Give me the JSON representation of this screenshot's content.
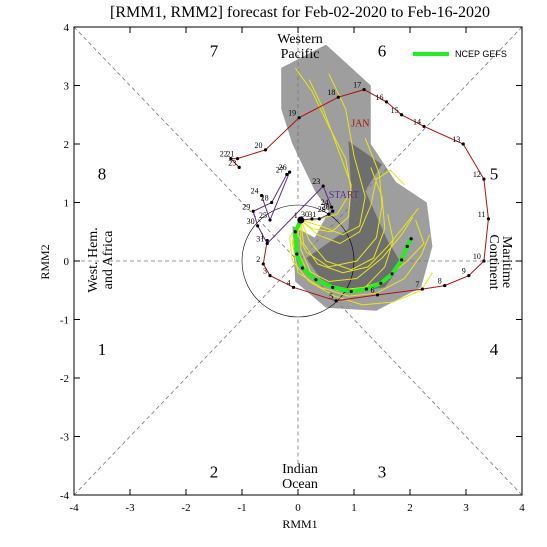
{
  "title": "[RMM1, RMM2] forecast for Feb-02-2020 to Feb-16-2020",
  "colors": {
    "observed_recent": "#5b2d8e",
    "observed_january": "#b01010",
    "ensemble_members": "#e6e61a",
    "ensemble_mean": "#22ee22",
    "spread_light": "#9e9e9e",
    "spread_dark": "#6e6e6e",
    "grid": "#777777"
  },
  "regions": {
    "western_pacific": [
      "Western",
      "Pacific"
    ],
    "indian_ocean": [
      "Indian",
      "Ocean"
    ],
    "maritime_continent": [
      "Maritime",
      "Continent"
    ],
    "west_hem_africa": [
      "West. Hem.",
      "and Africa"
    ]
  },
  "phases": [
    {
      "label": "1",
      "x": -3.5,
      "y": -1.5
    },
    {
      "label": "2",
      "x": -1.5,
      "y": -3.6
    },
    {
      "label": "3",
      "x": 1.5,
      "y": -3.6
    },
    {
      "label": "4",
      "x": 3.5,
      "y": -1.5
    },
    {
      "label": "5",
      "x": 3.5,
      "y": 1.5
    },
    {
      "label": "6",
      "x": 1.5,
      "y": 3.6
    },
    {
      "label": "7",
      "x": -1.5,
      "y": 3.6
    },
    {
      "label": "8",
      "x": -3.5,
      "y": 1.5
    }
  ],
  "legend": {
    "label": "NCEP GEFS"
  },
  "chart_data": {
    "type": "scatter",
    "xlabel": "RMM1",
    "ylabel": "RMM2",
    "xlim": [
      -4,
      4
    ],
    "ylim": [
      -4,
      4
    ],
    "xticks": [
      "-4",
      "-3",
      "-2",
      "-1",
      "0",
      "1",
      "2",
      "3",
      "4"
    ],
    "yticks": [
      "-4",
      "-3",
      "-2",
      "-1",
      "0",
      "1",
      "2",
      "3",
      "4"
    ],
    "month_label": {
      "text": "JAN",
      "x": 0.95,
      "y": 2.3
    },
    "start_label": {
      "text": "START",
      "x": 0.55,
      "y": 1.08
    },
    "observed_january": [
      {
        "day": "1",
        "x": -0.55,
        "y": 0.35
      },
      {
        "day": "2",
        "x": -0.62,
        "y": -0.05
      },
      {
        "day": "3",
        "x": -0.5,
        "y": -0.25
      },
      {
        "day": "4",
        "x": -0.08,
        "y": -0.45
      },
      {
        "day": "5",
        "x": 0.68,
        "y": -0.68
      },
      {
        "day": "6",
        "x": 1.42,
        "y": -0.58
      },
      {
        "day": "7",
        "x": 2.22,
        "y": -0.48
      },
      {
        "day": "8",
        "x": 2.62,
        "y": -0.42
      },
      {
        "day": "9",
        "x": 3.05,
        "y": -0.25
      },
      {
        "day": "10",
        "x": 3.32,
        "y": 0.0
      },
      {
        "day": "11",
        "x": 3.4,
        "y": 0.72
      },
      {
        "day": "12",
        "x": 3.32,
        "y": 1.4
      },
      {
        "day": "13",
        "x": 2.95,
        "y": 2.0
      },
      {
        "day": "14",
        "x": 2.25,
        "y": 2.3
      },
      {
        "day": "15",
        "x": 1.85,
        "y": 2.5
      },
      {
        "day": "16",
        "x": 1.58,
        "y": 2.72
      },
      {
        "day": "17",
        "x": 1.18,
        "y": 2.93
      },
      {
        "day": "18",
        "x": 0.72,
        "y": 2.8
      },
      {
        "day": "19",
        "x": 0.02,
        "y": 2.45
      },
      {
        "day": "20",
        "x": -0.58,
        "y": 1.9
      },
      {
        "day": "21",
        "x": -1.08,
        "y": 1.75
      },
      {
        "day": "22",
        "x": -1.2,
        "y": 1.75
      },
      {
        "day": "23",
        "x": -1.05,
        "y": 1.6
      }
    ],
    "observed_recent": [
      {
        "day": "24",
        "x": -0.65,
        "y": 1.12
      },
      {
        "day": "25",
        "x": -0.5,
        "y": 0.7
      },
      {
        "day": "26",
        "x": -0.15,
        "y": 1.52
      },
      {
        "day": "27",
        "x": -0.2,
        "y": 1.48
      },
      {
        "day": "28",
        "x": -0.47,
        "y": 1.0
      },
      {
        "day": "29",
        "x": -0.8,
        "y": 0.85
      },
      {
        "day": "30",
        "x": -0.72,
        "y": 0.6
      },
      {
        "day": "31",
        "x": -0.55,
        "y": 0.3
      },
      {
        "day": "23",
        "x": 0.45,
        "y": 1.28
      },
      {
        "day": "24",
        "x": 0.6,
        "y": 0.92
      },
      {
        "day": "28",
        "x": 0.62,
        "y": 0.85
      },
      {
        "day": "29",
        "x": 0.55,
        "y": 0.8
      },
      {
        "day": "31",
        "x": 0.38,
        "y": 0.72
      },
      {
        "day": "30",
        "x": 0.25,
        "y": 0.72
      },
      {
        "day": "1",
        "x": 0.05,
        "y": 0.7
      }
    ],
    "ensemble_mean": [
      {
        "x": 0.05,
        "y": 0.7
      },
      {
        "x": -0.05,
        "y": 0.5
      },
      {
        "x": -0.02,
        "y": 0.12
      },
      {
        "x": 0.08,
        "y": -0.12
      },
      {
        "x": 0.32,
        "y": -0.32
      },
      {
        "x": 0.62,
        "y": -0.45
      },
      {
        "x": 0.95,
        "y": -0.52
      },
      {
        "x": 1.22,
        "y": -0.48
      },
      {
        "x": 1.48,
        "y": -0.38
      },
      {
        "x": 1.68,
        "y": -0.22
      },
      {
        "x": 1.85,
        "y": 0.02
      },
      {
        "x": 1.95,
        "y": 0.25
      },
      {
        "x": 2.02,
        "y": 0.38
      }
    ],
    "ensemble_members": [
      [
        {
          "x": 0.05,
          "y": 0.7
        },
        {
          "x": -0.1,
          "y": 0.3
        },
        {
          "x": 0.0,
          "y": -0.2
        },
        {
          "x": 0.4,
          "y": -0.45
        },
        {
          "x": 0.9,
          "y": -0.6
        },
        {
          "x": 1.4,
          "y": -0.55
        },
        {
          "x": 1.9,
          "y": -0.3
        },
        {
          "x": 2.2,
          "y": 0.1
        },
        {
          "x": 2.35,
          "y": 0.45
        }
      ],
      [
        {
          "x": 0.05,
          "y": 0.7
        },
        {
          "x": 0.05,
          "y": 0.2
        },
        {
          "x": 0.25,
          "y": -0.25
        },
        {
          "x": 0.7,
          "y": -0.5
        },
        {
          "x": 1.2,
          "y": -0.45
        },
        {
          "x": 1.55,
          "y": -0.1
        },
        {
          "x": 1.7,
          "y": 0.35
        },
        {
          "x": 1.6,
          "y": 0.8
        }
      ],
      [
        {
          "x": 0.05,
          "y": 0.7
        },
        {
          "x": 0.2,
          "y": 0.35
        },
        {
          "x": 0.5,
          "y": 0.0
        },
        {
          "x": 0.95,
          "y": -0.15
        },
        {
          "x": 1.35,
          "y": 0.05
        },
        {
          "x": 1.55,
          "y": 0.55
        },
        {
          "x": 1.5,
          "y": 1.1
        },
        {
          "x": 1.3,
          "y": 1.6
        }
      ],
      [
        {
          "x": 0.05,
          "y": 0.7
        },
        {
          "x": -0.15,
          "y": 0.4
        },
        {
          "x": -0.1,
          "y": 0.0
        },
        {
          "x": 0.2,
          "y": -0.35
        },
        {
          "x": 0.65,
          "y": -0.6
        },
        {
          "x": 1.15,
          "y": -0.75
        },
        {
          "x": 1.7,
          "y": -0.7
        },
        {
          "x": 2.2,
          "y": -0.5
        },
        {
          "x": 2.4,
          "y": -0.2
        }
      ],
      [
        {
          "x": 0.05,
          "y": 0.7
        },
        {
          "x": 0.4,
          "y": 0.6
        },
        {
          "x": 0.8,
          "y": 0.45
        },
        {
          "x": 1.1,
          "y": 0.6
        },
        {
          "x": 1.2,
          "y": 1.1
        },
        {
          "x": 1.0,
          "y": 1.8
        },
        {
          "x": 0.85,
          "y": 2.6
        },
        {
          "x": 0.55,
          "y": 3.2
        }
      ],
      [
        {
          "x": 0.05,
          "y": 0.7
        },
        {
          "x": 0.0,
          "y": 0.45
        },
        {
          "x": 0.15,
          "y": 0.15
        },
        {
          "x": 0.55,
          "y": -0.1
        },
        {
          "x": 1.05,
          "y": 0.0
        },
        {
          "x": 1.4,
          "y": 0.4
        },
        {
          "x": 1.5,
          "y": 0.95
        },
        {
          "x": 1.45,
          "y": 1.5
        },
        {
          "x": 1.2,
          "y": 2.1
        }
      ],
      [
        {
          "x": 0.05,
          "y": 0.7
        },
        {
          "x": -0.05,
          "y": 0.25
        },
        {
          "x": 0.15,
          "y": -0.15
        },
        {
          "x": 0.55,
          "y": -0.35
        },
        {
          "x": 1.05,
          "y": -0.3
        },
        {
          "x": 1.5,
          "y": 0.05
        },
        {
          "x": 1.85,
          "y": 0.45
        },
        {
          "x": 2.05,
          "y": 0.75
        }
      ],
      [
        {
          "x": 0.05,
          "y": 0.7
        },
        {
          "x": 0.25,
          "y": 0.55
        },
        {
          "x": 0.6,
          "y": 0.5
        },
        {
          "x": 0.9,
          "y": 0.75
        },
        {
          "x": 0.95,
          "y": 1.3
        },
        {
          "x": 0.7,
          "y": 1.95
        },
        {
          "x": 0.45,
          "y": 2.6
        },
        {
          "x": 0.2,
          "y": 3.1
        }
      ],
      [
        {
          "x": 0.05,
          "y": 0.7
        },
        {
          "x": 0.1,
          "y": 0.3
        },
        {
          "x": 0.35,
          "y": -0.05
        },
        {
          "x": 0.8,
          "y": -0.2
        },
        {
          "x": 1.25,
          "y": -0.1
        },
        {
          "x": 1.6,
          "y": 0.25
        },
        {
          "x": 1.9,
          "y": 0.6
        },
        {
          "x": 2.15,
          "y": 0.9
        }
      ],
      [
        {
          "x": 0.05,
          "y": 0.7
        },
        {
          "x": 0.3,
          "y": 0.7
        },
        {
          "x": 0.7,
          "y": 0.8
        },
        {
          "x": 0.95,
          "y": 1.2
        },
        {
          "x": 0.85,
          "y": 1.75
        },
        {
          "x": 0.55,
          "y": 2.3
        },
        {
          "x": 0.25,
          "y": 2.9
        },
        {
          "x": -0.05,
          "y": 3.3
        }
      ],
      [
        {
          "x": 0.05,
          "y": 0.7
        },
        {
          "x": -0.1,
          "y": 0.35
        },
        {
          "x": 0.05,
          "y": -0.1
        },
        {
          "x": 0.5,
          "y": -0.4
        },
        {
          "x": 1.0,
          "y": -0.5
        },
        {
          "x": 1.5,
          "y": -0.35
        },
        {
          "x": 1.95,
          "y": 0.0
        },
        {
          "x": 2.25,
          "y": 0.3
        },
        {
          "x": 2.1,
          "y": 0.7
        }
      ],
      [
        {
          "x": 0.05,
          "y": 0.7
        },
        {
          "x": 0.35,
          "y": 0.45
        },
        {
          "x": 0.75,
          "y": 0.3
        },
        {
          "x": 1.1,
          "y": 0.5
        },
        {
          "x": 1.3,
          "y": 0.95
        },
        {
          "x": 1.4,
          "y": 1.4
        },
        {
          "x": 1.65,
          "y": 1.55
        },
        {
          "x": 1.9,
          "y": 1.3
        }
      ]
    ],
    "spread_outer": [
      {
        "x": -0.3,
        "y": 3.3
      },
      {
        "x": 0.5,
        "y": 3.7
      },
      {
        "x": 1.3,
        "y": 3.0
      },
      {
        "x": 1.3,
        "y": 2.0
      },
      {
        "x": 1.75,
        "y": 1.35
      },
      {
        "x": 2.3,
        "y": 1.0
      },
      {
        "x": 2.4,
        "y": 0.25
      },
      {
        "x": 2.2,
        "y": -0.45
      },
      {
        "x": 1.4,
        "y": -0.85
      },
      {
        "x": 0.5,
        "y": -0.8
      },
      {
        "x": -0.05,
        "y": -0.35
      },
      {
        "x": -0.1,
        "y": 0.6
      },
      {
        "x": 0.3,
        "y": 0.4
      },
      {
        "x": 0.55,
        "y": 0.85
      },
      {
        "x": 0.3,
        "y": 1.2
      },
      {
        "x": -0.1,
        "y": 2.0
      },
      {
        "x": -0.3,
        "y": 2.6
      }
    ],
    "spread_inner": [
      {
        "x": 0.9,
        "y": 2.05
      },
      {
        "x": 1.5,
        "y": 1.65
      },
      {
        "x": 1.2,
        "y": 1.2
      },
      {
        "x": 1.6,
        "y": 0.35
      },
      {
        "x": 1.85,
        "y": -0.05
      },
      {
        "x": 1.55,
        "y": -0.45
      },
      {
        "x": 0.85,
        "y": -0.55
      },
      {
        "x": 0.4,
        "y": -0.3
      },
      {
        "x": 0.15,
        "y": 0.05
      },
      {
        "x": 0.45,
        "y": 0.25
      },
      {
        "x": 0.9,
        "y": 0.55
      },
      {
        "x": 0.95,
        "y": 1.2
      }
    ]
  }
}
